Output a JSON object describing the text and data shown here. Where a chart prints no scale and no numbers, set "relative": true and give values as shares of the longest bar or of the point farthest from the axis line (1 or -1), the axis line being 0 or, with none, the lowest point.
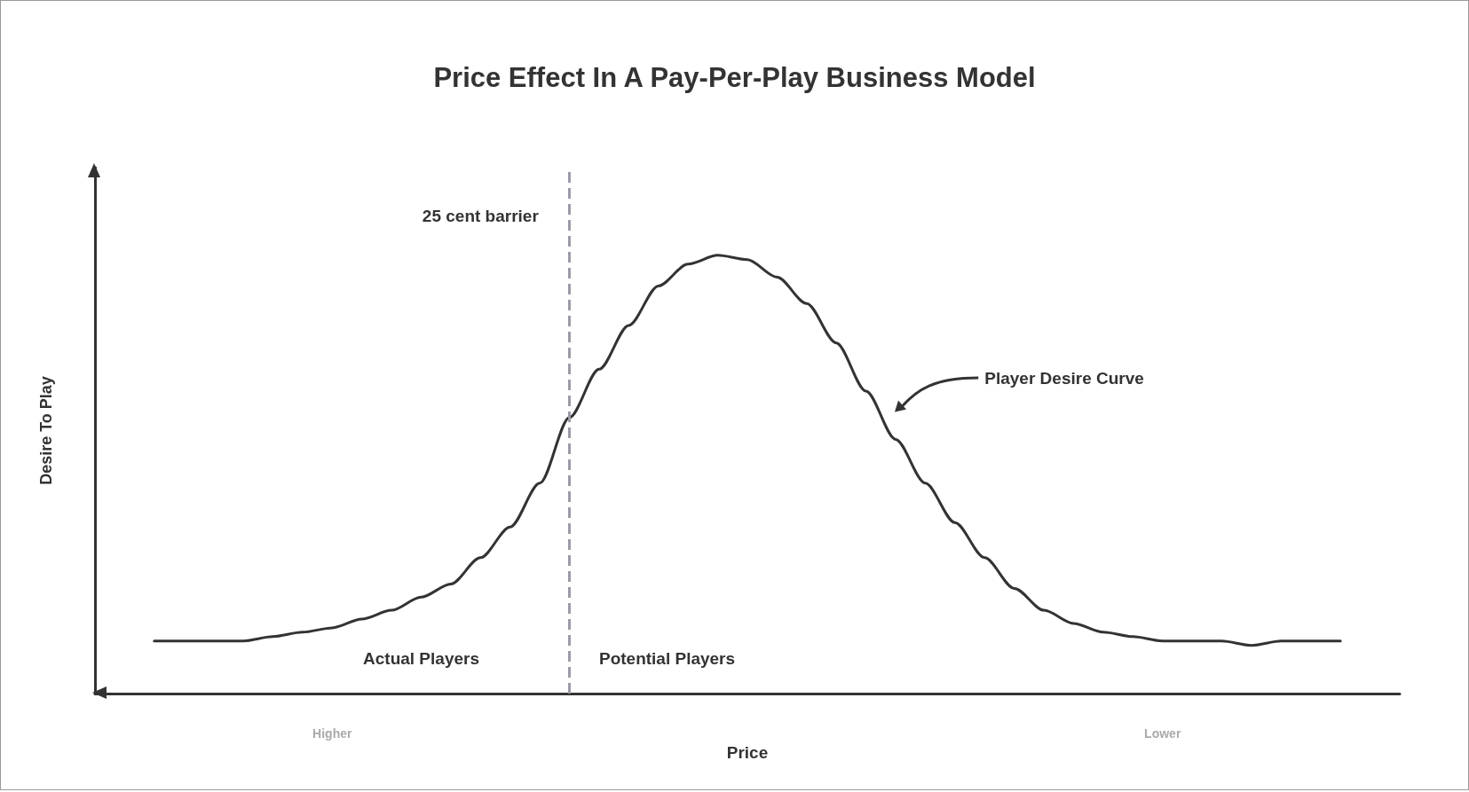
{
  "chart_data": {
    "type": "line",
    "title": "Price Effect In A Pay-Per-Play Business Model",
    "xlabel": "Price",
    "ylabel": "Desire To Play",
    "relative": true,
    "tick_labels": "x",
    "marker": "none",
    "line_style": "solid",
    "categories": [
      null,
      null,
      null,
      null,
      null,
      null,
      null,
      null,
      "Higher",
      null,
      null,
      null,
      null,
      null,
      null,
      null,
      null,
      null,
      null,
      null,
      null,
      null,
      null,
      null,
      null,
      null,
      null,
      null,
      null,
      null,
      null,
      null,
      null,
      null,
      null,
      null,
      "Lower",
      null,
      null,
      null,
      null,
      null,
      null,
      null,
      null
    ],
    "series": [
      {
        "color": "#333333",
        "values": [
          null,
          null,
          0.12,
          0.12,
          0.12,
          0.12,
          0.13,
          0.14,
          0.15,
          0.17,
          0.19,
          0.22,
          0.25,
          0.31,
          0.38,
          0.48,
          0.63,
          0.74,
          0.84,
          0.93,
          0.98,
          1.0,
          0.99,
          0.95,
          0.89,
          0.8,
          0.69,
          0.58,
          0.48,
          0.39,
          0.31,
          0.24,
          0.19,
          0.16,
          0.14,
          0.13,
          0.12,
          0.12,
          0.12,
          0.11,
          0.12,
          0.12,
          0.12,
          null,
          null
        ]
      }
    ],
    "annotations": [
      "25 cent barrier",
      "Actual Players",
      "Potential Players",
      "Player Desire Curve"
    ]
  }
}
